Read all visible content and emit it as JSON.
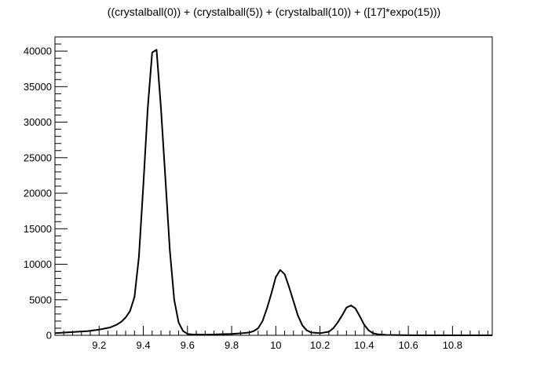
{
  "chart_data": {
    "type": "line",
    "title": "((crystalball(0)) + (crystalball(5)) + (crystalball(10)) + ([17]*expo(15)))",
    "xlabel": "",
    "ylabel": "",
    "xlim": [
      9.0,
      10.98
    ],
    "ylim": [
      0,
      42000
    ],
    "x_ticks": [
      9.2,
      9.4,
      9.6,
      9.8,
      10.0,
      10.2,
      10.4,
      10.6,
      10.8
    ],
    "x_tick_labels": [
      "9.2",
      "9.4",
      "9.6",
      "9.8",
      "10",
      "10.2",
      "10.4",
      "10.6",
      "10.8"
    ],
    "y_ticks": [
      0,
      5000,
      10000,
      15000,
      20000,
      25000,
      30000,
      35000,
      40000
    ],
    "y_tick_labels": [
      "0",
      "5000",
      "10000",
      "15000",
      "20000",
      "25000",
      "30000",
      "35000",
      "40000"
    ],
    "grid": false,
    "legend": "none",
    "line_color": "#000000",
    "series": [
      {
        "x": [
          9.0,
          9.05,
          9.1,
          9.15,
          9.2,
          9.25,
          9.28,
          9.3,
          9.32,
          9.34,
          9.36,
          9.38,
          9.4,
          9.42,
          9.44,
          9.46,
          9.48,
          9.5,
          9.52,
          9.54,
          9.56,
          9.58,
          9.6,
          9.62,
          9.65,
          9.7,
          9.75,
          9.8,
          9.85,
          9.88,
          9.9,
          9.92,
          9.94,
          9.96,
          9.98,
          10.0,
          10.02,
          10.04,
          10.06,
          10.08,
          10.1,
          10.12,
          10.14,
          10.16,
          10.2,
          10.24,
          10.26,
          10.28,
          10.3,
          10.32,
          10.34,
          10.36,
          10.38,
          10.4,
          10.42,
          10.44,
          10.46,
          10.5,
          10.6,
          10.7,
          10.8,
          10.9,
          10.98
        ],
        "values": [
          300,
          400,
          500,
          600,
          800,
          1100,
          1500,
          1900,
          2500,
          3400,
          5400,
          11000,
          21000,
          32000,
          39800,
          40200,
          32000,
          22000,
          12000,
          5000,
          1800,
          600,
          200,
          120,
          100,
          100,
          150,
          200,
          300,
          400,
          600,
          1000,
          2000,
          3800,
          5900,
          8200,
          9200,
          8600,
          6800,
          4800,
          2800,
          1400,
          700,
          400,
          300,
          500,
          1000,
          1800,
          2800,
          3900,
          4200,
          3800,
          2700,
          1500,
          700,
          300,
          150,
          50,
          10,
          0,
          0,
          0,
          0
        ]
      }
    ]
  }
}
